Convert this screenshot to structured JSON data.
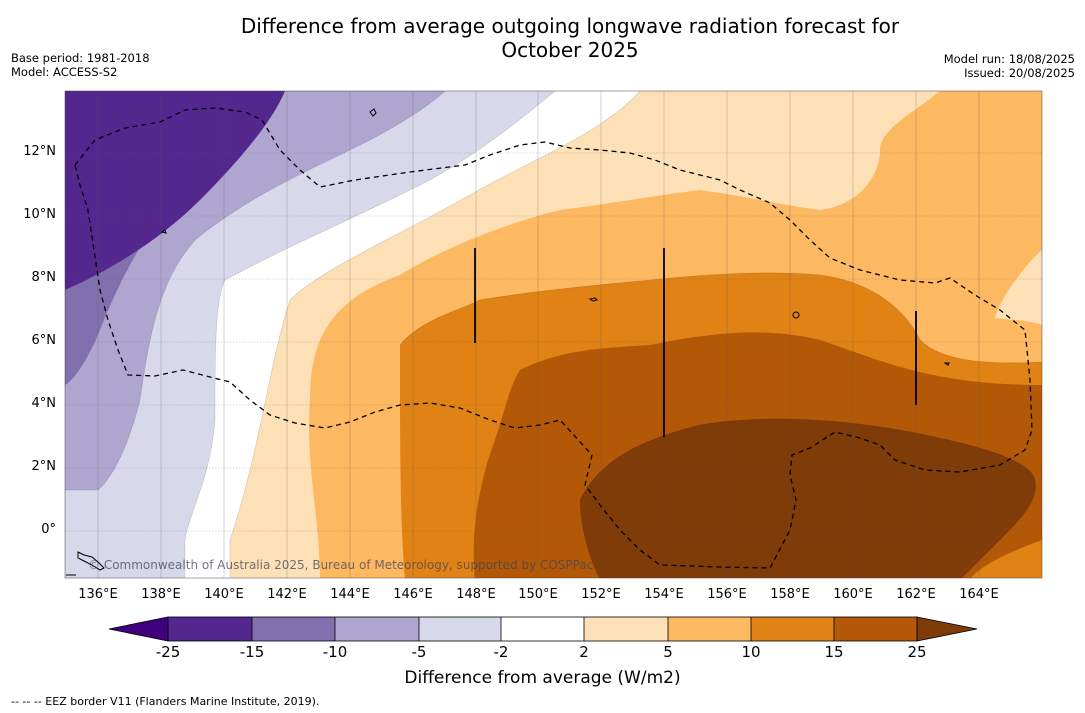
{
  "header": {
    "title_line1": "Difference from average outgoing longwave radiation forecast for",
    "title_line2": "October 2025",
    "base_period": "Base period: 1981-2018",
    "model": "Model: ACCESS-S2",
    "model_run": "Model run: 18/08/2025",
    "issued": "Issued: 20/08/2025"
  },
  "map": {
    "lon_labels": [
      "136°E",
      "138°E",
      "140°E",
      "142°E",
      "144°E",
      "146°E",
      "148°E",
      "150°E",
      "152°E",
      "154°E",
      "156°E",
      "158°E",
      "160°E",
      "162°E",
      "164°E"
    ],
    "lat_labels": [
      "12°N",
      "10°N",
      "8°N",
      "6°N",
      "4°N",
      "2°N",
      "0°"
    ],
    "credit": "© Commonwealth of Australia 2025, Bureau of Meteorology, supported by COSPPac",
    "palette": [
      "#3f007d",
      "#54278f",
      "#8070ae",
      "#afa6d0",
      "#d8d8eb",
      "#ffffff",
      "#fee0b6",
      "#fdb862",
      "#e08214",
      "#b35806",
      "#7f3b08"
    ]
  },
  "colorbar": {
    "ticks": [
      "-25",
      "-15",
      "-10",
      "-5",
      "-2",
      "2",
      "5",
      "10",
      "15",
      "25"
    ],
    "label": "Difference from average (W/m2)"
  },
  "footnote": "--  --  -- EEZ border V11 (Flanders Marine Institute, 2019)."
}
